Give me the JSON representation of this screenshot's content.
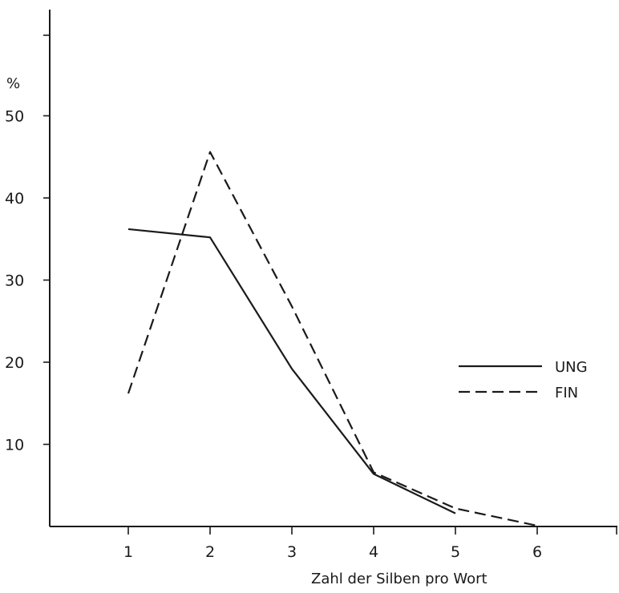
{
  "chart_data": {
    "type": "line",
    "title": "",
    "xlabel": "Zahl der Silben pro Wort",
    "ylabel": "%",
    "x_ticks": [
      "1",
      "2",
      "3",
      "4",
      "5",
      "6"
    ],
    "y_ticks": [
      "10",
      "20",
      "30",
      "40",
      "50"
    ],
    "xlim": [
      0,
      7
    ],
    "ylim": [
      0,
      63
    ],
    "grid": false,
    "legend_position": "right",
    "series": [
      {
        "name": "UNG",
        "style": "solid",
        "color": "#1a1a1a",
        "x": [
          1,
          2,
          3,
          4,
          5
        ],
        "values": [
          36.2,
          35.2,
          19.2,
          6.4,
          1.6
        ]
      },
      {
        "name": "FIN",
        "style": "dashed",
        "color": "#1a1a1a",
        "x": [
          1,
          2,
          3,
          4,
          5,
          6
        ],
        "values": [
          16.2,
          45.6,
          26.8,
          6.6,
          2.2,
          0.1
        ]
      }
    ]
  }
}
